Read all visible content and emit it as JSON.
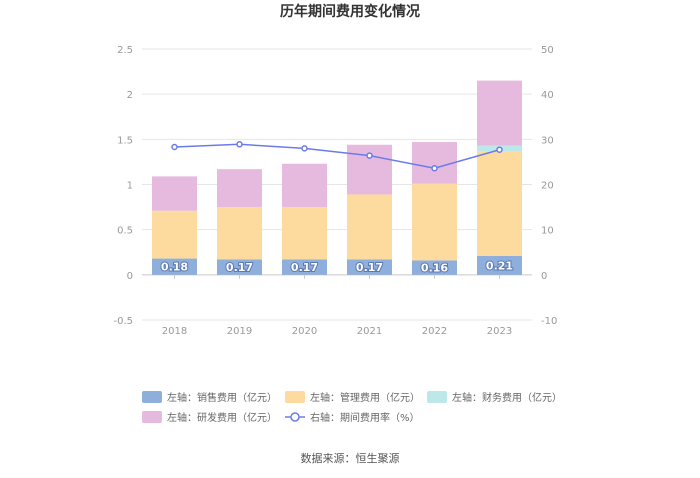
{
  "chart_data": {
    "type": "bar",
    "title": "历年期间费用变化情况",
    "categories": [
      "2018",
      "2019",
      "2020",
      "2021",
      "2022",
      "2023"
    ],
    "series": [
      {
        "name": "左轴：销售费用（亿元）",
        "axis": "left",
        "color": "#8eaedc",
        "values": [
          0.18,
          0.17,
          0.17,
          0.17,
          0.16,
          0.21
        ],
        "labels": [
          "0.18",
          "0.17",
          "0.17",
          "0.17",
          "0.16",
          "0.21"
        ]
      },
      {
        "name": "左轴：管理费用（亿元）",
        "axis": "left",
        "color": "#fddb9f",
        "values": [
          0.53,
          0.58,
          0.58,
          0.72,
          0.85,
          1.16
        ]
      },
      {
        "name": "左轴：财务费用（亿元）",
        "axis": "left",
        "color": "#bde8ea",
        "values": [
          0.0,
          0.0,
          0.0,
          0.0,
          0.0,
          0.06
        ]
      },
      {
        "name": "左轴：研发费用（亿元）",
        "axis": "left",
        "color": "#e6bade",
        "values": [
          0.38,
          0.42,
          0.48,
          0.55,
          0.46,
          0.72
        ]
      },
      {
        "name": "右轴：期间费用率（%）",
        "axis": "right",
        "type": "line",
        "color": "#6b7bea",
        "values": [
          28.3,
          28.9,
          28.0,
          26.4,
          23.6,
          27.7
        ]
      }
    ],
    "y_left": {
      "min": -0.5,
      "max": 2.5,
      "ticks": [
        "-0.5",
        "0",
        "0.5",
        "1",
        "1.5",
        "2",
        "2.5"
      ]
    },
    "y_right": {
      "min": -10,
      "max": 50,
      "ticks": [
        "-10",
        "0",
        "10",
        "20",
        "30",
        "40",
        "50"
      ]
    },
    "grid": true,
    "legend_position": "bottom",
    "source": "数据来源：恒生聚源"
  }
}
